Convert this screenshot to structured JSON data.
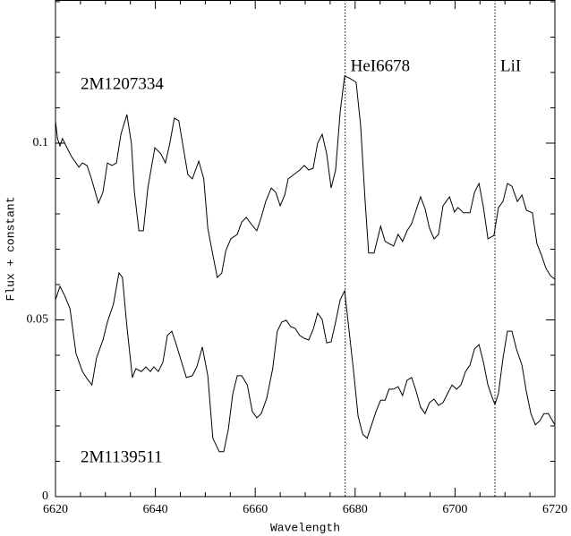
{
  "chart_data": {
    "type": "line",
    "xlabel": "Wavelength",
    "ylabel": "Flux + constant",
    "xlim": [
      6620,
      6720
    ],
    "xticks": [
      6620,
      6640,
      6660,
      6680,
      6700,
      6720
    ],
    "xticks_minor": [
      6625,
      6630,
      6635,
      6645,
      6650,
      6655,
      6665,
      6670,
      6675,
      6685,
      6690,
      6695,
      6705,
      6710,
      6715
    ],
    "ylim": [
      0,
      0.1405
    ],
    "yticks": [
      0,
      0.05,
      0.1
    ],
    "yticks_minor": [
      0.01,
      0.02,
      0.03,
      0.04,
      0.06,
      0.07,
      0.08,
      0.09,
      0.11,
      0.12,
      0.13,
      0.14
    ],
    "vlines": [
      6678,
      6708
    ],
    "annotations": [
      "HeI6678",
      "LiI"
    ],
    "series": [
      {
        "name": "2M1207334",
        "color": "#000000",
        "x": [
          6620.0,
          6620.4,
          6620.9,
          6621.4,
          6622.3,
          6623.2,
          6624.7,
          6625.4,
          6626.3,
          6627.2,
          6628.6,
          6629.5,
          6630.4,
          6631.3,
          6632.2,
          6633.1,
          6634.3,
          6635.2,
          6635.8,
          6636.7,
          6637.6,
          6638.5,
          6639.9,
          6641.1,
          6642.0,
          6642.9,
          6643.8,
          6644.7,
          6645.6,
          6646.5,
          6647.4,
          6648.7,
          6649.7,
          6650.5,
          6651.5,
          6652.4,
          6653.3,
          6654.1,
          6655.1,
          6656.4,
          6657.3,
          6658.2,
          6659.4,
          6660.3,
          6661.2,
          6662.1,
          6663.2,
          6664.1,
          6665.0,
          6665.9,
          6666.6,
          6667.7,
          6668.9,
          6669.8,
          6670.7,
          6671.6,
          6672.5,
          6673.4,
          6674.3,
          6675.2,
          6676.1,
          6677.0,
          6677.9,
          6679.1,
          6680.2,
          6681.1,
          6682.0,
          6682.7,
          6683.8,
          6685.1,
          6686.0,
          6686.8,
          6687.7,
          6688.6,
          6689.5,
          6690.4,
          6691.3,
          6692.2,
          6693.1,
          6694.0,
          6694.9,
          6695.8,
          6696.7,
          6697.6,
          6698.9,
          6699.9,
          6700.6,
          6701.7,
          6703.0,
          6703.9,
          6704.8,
          6705.7,
          6706.6,
          6707.8,
          6708.7,
          6709.6,
          6710.5,
          6711.4,
          6712.5,
          6713.4,
          6714.3,
          6715.5,
          6716.4,
          6717.3,
          6718.2,
          6719.1,
          6720.0
        ],
        "values": [
          0.1063,
          0.1013,
          0.0992,
          0.1013,
          0.0987,
          0.0962,
          0.0932,
          0.0944,
          0.0937,
          0.0899,
          0.083,
          0.0861,
          0.0944,
          0.0937,
          0.0944,
          0.1025,
          0.1081,
          0.1,
          0.0861,
          0.0752,
          0.0752,
          0.0873,
          0.0987,
          0.097,
          0.0944,
          0.1,
          0.1071,
          0.1063,
          0.0987,
          0.0911,
          0.0899,
          0.0949,
          0.0899,
          0.0759,
          0.0684,
          0.062,
          0.0633,
          0.0696,
          0.0729,
          0.0742,
          0.0777,
          0.079,
          0.0767,
          0.0752,
          0.079,
          0.0835,
          0.0873,
          0.0861,
          0.0823,
          0.0853,
          0.0899,
          0.0911,
          0.0924,
          0.0937,
          0.0924,
          0.0929,
          0.1,
          0.1025,
          0.097,
          0.0873,
          0.0924,
          0.1089,
          0.119,
          0.1182,
          0.1172,
          0.1051,
          0.0835,
          0.0689,
          0.0689,
          0.0765,
          0.0722,
          0.0716,
          0.0709,
          0.0742,
          0.0722,
          0.0752,
          0.0772,
          0.081,
          0.0848,
          0.0815,
          0.0759,
          0.0729,
          0.0742,
          0.0823,
          0.0848,
          0.0805,
          0.0818,
          0.0803,
          0.0803,
          0.0861,
          0.0886,
          0.0818,
          0.0729,
          0.0739,
          0.0818,
          0.0835,
          0.0886,
          0.0878,
          0.0835,
          0.0853,
          0.081,
          0.0803,
          0.0716,
          0.0684,
          0.0646,
          0.0625,
          0.0615
        ]
      },
      {
        "name": "2M1139511",
        "color": "#000000",
        "x": [
          6620.0,
          6620.9,
          6621.8,
          6622.9,
          6624.1,
          6625.4,
          6626.3,
          6627.3,
          6628.2,
          6629.5,
          6630.4,
          6631.6,
          6632.7,
          6633.4,
          6634.3,
          6635.4,
          6636.1,
          6637.2,
          6638.1,
          6639.0,
          6639.7,
          6640.6,
          6641.5,
          6642.4,
          6643.3,
          6644.2,
          6645.1,
          6646.2,
          6647.4,
          6648.3,
          6649.4,
          6650.5,
          6651.5,
          6652.8,
          6653.7,
          6654.6,
          6655.5,
          6656.4,
          6657.3,
          6658.4,
          6659.4,
          6660.3,
          6661.2,
          6662.3,
          6663.5,
          6664.4,
          6665.3,
          6666.2,
          6667.1,
          6668.0,
          6668.9,
          6669.8,
          6670.7,
          6671.6,
          6672.5,
          6673.4,
          6674.3,
          6675.2,
          6676.1,
          6677.0,
          6677.9,
          6678.8,
          6679.7,
          6680.6,
          6681.5,
          6682.4,
          6683.3,
          6684.2,
          6685.1,
          6686.0,
          6686.8,
          6687.7,
          6688.6,
          6689.5,
          6690.4,
          6691.3,
          6692.2,
          6693.1,
          6694.0,
          6694.9,
          6695.8,
          6696.7,
          6697.6,
          6698.5,
          6699.4,
          6700.3,
          6701.2,
          6702.1,
          6703.0,
          6703.9,
          6704.8,
          6705.7,
          6706.6,
          6707.5,
          6708.0,
          6708.7,
          6709.6,
          6710.5,
          6711.4,
          6712.3,
          6713.4,
          6714.3,
          6715.2,
          6716.1,
          6717.0,
          6717.8,
          6718.7,
          6720.0
        ],
        "values": [
          0.0557,
          0.0595,
          0.057,
          0.0532,
          0.0405,
          0.0354,
          0.0334,
          0.0316,
          0.0392,
          0.0443,
          0.0494,
          0.0544,
          0.0633,
          0.062,
          0.0481,
          0.0337,
          0.0362,
          0.0354,
          0.0367,
          0.0354,
          0.0367,
          0.0354,
          0.038,
          0.0456,
          0.0468,
          0.043,
          0.0387,
          0.0337,
          0.0342,
          0.0367,
          0.0423,
          0.0342,
          0.0165,
          0.0127,
          0.0127,
          0.019,
          0.0291,
          0.0342,
          0.0342,
          0.0316,
          0.0241,
          0.0223,
          0.0235,
          0.0278,
          0.0362,
          0.0468,
          0.0494,
          0.0499,
          0.0481,
          0.0476,
          0.0456,
          0.0448,
          0.0443,
          0.0473,
          0.0519,
          0.0501,
          0.0435,
          0.0438,
          0.0494,
          0.0557,
          0.0582,
          0.0468,
          0.0354,
          0.0228,
          0.0177,
          0.0165,
          0.0203,
          0.0241,
          0.0273,
          0.0273,
          0.0304,
          0.0304,
          0.0311,
          0.0286,
          0.0329,
          0.0337,
          0.0299,
          0.0253,
          0.0235,
          0.0266,
          0.0276,
          0.0258,
          0.0266,
          0.0291,
          0.0316,
          0.0304,
          0.0316,
          0.0354,
          0.0372,
          0.0418,
          0.043,
          0.038,
          0.0316,
          0.0278,
          0.0261,
          0.0291,
          0.0392,
          0.0468,
          0.0468,
          0.0418,
          0.0372,
          0.0296,
          0.0235,
          0.0203,
          0.0215,
          0.0235,
          0.0235,
          0.0203
        ]
      }
    ]
  }
}
